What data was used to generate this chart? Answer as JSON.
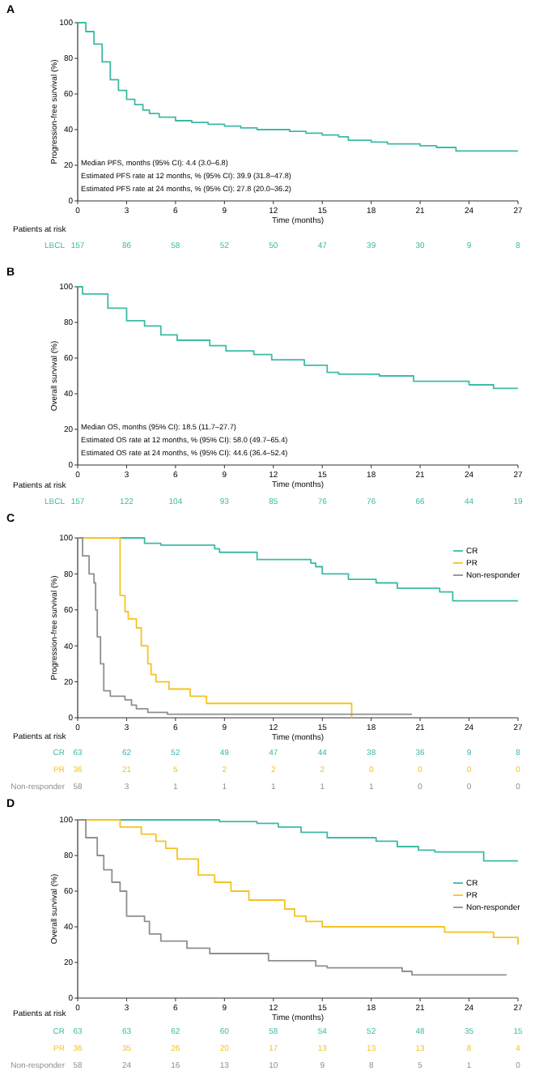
{
  "chart_data": [
    {
      "type": "step",
      "title": "A",
      "xlabel": "Time (months)",
      "ylabel": "Progression-free survival (%)",
      "xlim": [
        0,
        27
      ],
      "ylim": [
        0,
        100
      ],
      "xticks": [
        0,
        3,
        6,
        9,
        12,
        15,
        18,
        21,
        24,
        27
      ],
      "yticks": [
        0,
        20,
        40,
        60,
        80,
        100
      ],
      "annotations": [
        "Median PFS, months (95% CI):  4.4 (3.0–6.8)",
        "Estimated PFS rate at 12 months, % (95% CI):  39.9 (31.8–47.8)",
        "Estimated PFS rate at 24 months, % (95% CI):  27.8 (20.0–36.2)"
      ],
      "series": [
        {
          "color": "#3dbaa5",
          "x": [
            0,
            0.5,
            1,
            1.5,
            2,
            2.5,
            3,
            3.5,
            4,
            4.4,
            5,
            6,
            7,
            8,
            9,
            10,
            11,
            12,
            13,
            14,
            15,
            16,
            16.6,
            18,
            19,
            21,
            22,
            23.2,
            24,
            27
          ],
          "values": [
            100,
            95,
            88,
            78,
            68,
            62,
            57,
            54,
            51,
            49,
            47,
            45,
            44,
            43,
            42,
            41,
            40,
            40,
            39,
            38,
            37,
            36,
            34,
            33,
            32,
            31,
            30,
            28,
            28,
            28
          ]
        }
      ]
    },
    {
      "type": "heatmap",
      "title": "Patients at risk",
      "data_labels": true,
      "categories": [
        null,
        null,
        null,
        null,
        null,
        null,
        null,
        null,
        null,
        null
      ],
      "y_categories": [
        "LBCL"
      ],
      "cells": [
        [
          157,
          86,
          58,
          52,
          50,
          47,
          39,
          30,
          9,
          8
        ]
      ]
    },
    {
      "type": "step",
      "title": "B",
      "xlabel": "Time (months)",
      "ylabel": "Overall survival (%)",
      "xlim": [
        0,
        27
      ],
      "ylim": [
        0,
        100
      ],
      "xticks": [
        0,
        3,
        6,
        9,
        12,
        15,
        18,
        21,
        24,
        27
      ],
      "yticks": [
        0,
        20,
        40,
        60,
        80,
        100
      ],
      "annotations": [
        "Median OS, months (95% CI):  18.5 (11.7–27.7)",
        "Estimated OS rate at 12 months, % (95% CI):  58.0 (49.7–65.4)",
        "Estimated OS rate at 24 months, % (95% CI):  44.6 (36.4–52.4)"
      ],
      "series": [
        {
          "color": "#3dbaa5",
          "x": [
            0,
            0.3,
            1.85,
            3,
            4.1,
            5.1,
            6.1,
            8.1,
            9.1,
            10.8,
            11.9,
            13.9,
            15.3,
            16,
            18.5,
            20.6,
            24,
            25.5,
            27
          ],
          "values": [
            100,
            96,
            88,
            81,
            78,
            73,
            70,
            67,
            64,
            62,
            59,
            56,
            52,
            51,
            50,
            47,
            45,
            43,
            43
          ]
        }
      ]
    },
    {
      "type": "heatmap",
      "title": "Patients at risk",
      "data_labels": true,
      "categories": [
        null,
        null,
        null,
        null,
        null,
        null,
        null,
        null,
        null,
        null
      ],
      "y_categories": [
        "LBCL"
      ],
      "cells": [
        [
          157,
          122,
          104,
          93,
          85,
          76,
          76,
          66,
          44,
          19
        ]
      ]
    },
    {
      "type": "step",
      "title": "C",
      "xlabel": "Time (months)",
      "ylabel": "Progression-free survival (%)",
      "xlim": [
        0,
        27
      ],
      "ylim": [
        0,
        100
      ],
      "xticks": [
        0,
        3,
        6,
        9,
        12,
        15,
        18,
        21,
        24,
        27
      ],
      "yticks": [
        0,
        20,
        40,
        60,
        80,
        100
      ],
      "legend": "top right",
      "series": [
        {
          "name": "CR",
          "color": "#3dbaa5",
          "x": [
            0,
            4.1,
            5.1,
            8.4,
            8.7,
            11,
            14.3,
            14.6,
            15,
            16.6,
            18.3,
            19.6,
            22.2,
            23,
            27
          ],
          "values": [
            100,
            97,
            96,
            94,
            92,
            88,
            86,
            84,
            80,
            77,
            75,
            72,
            70,
            65,
            65
          ]
        },
        {
          "name": "PR",
          "color": "#f5c320",
          "x": [
            0,
            2.6,
            2.9,
            3.1,
            3.6,
            3.9,
            4.3,
            4.5,
            4.8,
            5.6,
            6.9,
            7.9,
            8.4,
            16.8
          ],
          "values": [
            100,
            68,
            59,
            55,
            50,
            40,
            30,
            24,
            20,
            16,
            12,
            8,
            8,
            0
          ]
        },
        {
          "name": "Non-responder",
          "color": "#8f8f8f",
          "x": [
            0,
            0.3,
            0.7,
            1,
            1.1,
            1.2,
            1.4,
            1.6,
            2,
            2.9,
            3.3,
            3.6,
            4.3,
            5.5,
            20.5
          ],
          "values": [
            100,
            90,
            80,
            75,
            60,
            45,
            30,
            15,
            12,
            10,
            7,
            5,
            3,
            2,
            2
          ]
        }
      ]
    },
    {
      "type": "heatmap",
      "title": "Patients at risk",
      "data_labels": true,
      "categories": [
        null,
        null,
        null,
        null,
        null,
        null,
        null,
        null,
        null,
        null
      ],
      "y_categories": [
        "CR",
        "PR",
        "Non-responder"
      ],
      "cells": [
        [
          63,
          62,
          52,
          49,
          47,
          44,
          38,
          36,
          9,
          8
        ],
        [
          36,
          21,
          5,
          2,
          2,
          2,
          0,
          0,
          0,
          0
        ],
        [
          58,
          3,
          1,
          1,
          1,
          1,
          1,
          0,
          0,
          0
        ]
      ]
    },
    {
      "type": "step",
      "title": "D",
      "xlabel": "Time (months)",
      "ylabel": "Overall survival (%)",
      "xlim": [
        0,
        27
      ],
      "ylim": [
        0,
        100
      ],
      "xticks": [
        0,
        3,
        6,
        9,
        12,
        15,
        18,
        21,
        24,
        27
      ],
      "yticks": [
        0,
        20,
        40,
        60,
        80,
        100
      ],
      "legend": "right",
      "series": [
        {
          "name": "CR",
          "color": "#3dbaa5",
          "x": [
            0,
            8.7,
            11,
            12.3,
            13.7,
            15.3,
            18.3,
            19.6,
            20.9,
            21.9,
            24.9,
            27
          ],
          "values": [
            100,
            99,
            98,
            96,
            93,
            90,
            88,
            85,
            83,
            82,
            77,
            77
          ]
        },
        {
          "name": "PR",
          "color": "#f5c320",
          "x": [
            0,
            2.6,
            3.9,
            4.8,
            5.4,
            6.1,
            7.4,
            8.4,
            9.4,
            10.5,
            12.7,
            13.3,
            14,
            15,
            22.5,
            25.5,
            27
          ],
          "values": [
            100,
            96,
            92,
            88,
            84,
            78,
            69,
            65,
            60,
            55,
            50,
            46,
            43,
            40,
            37,
            34,
            30
          ]
        },
        {
          "name": "Non-responder",
          "color": "#8f8f8f",
          "x": [
            0,
            0.5,
            1.2,
            1.6,
            2.1,
            2.6,
            3,
            4.1,
            4.4,
            5.1,
            6.7,
            8.1,
            11.7,
            14.6,
            15.3,
            19.9,
            20.5,
            26.3
          ],
          "values": [
            100,
            90,
            80,
            72,
            65,
            60,
            46,
            43,
            36,
            32,
            28,
            25,
            21,
            18,
            17,
            15,
            13,
            13
          ]
        }
      ]
    },
    {
      "type": "heatmap",
      "title": "Patients at risk",
      "data_labels": true,
      "categories": [
        null,
        null,
        null,
        null,
        null,
        null,
        null,
        null,
        null,
        null
      ],
      "y_categories": [
        "CR",
        "PR",
        "Non-responder"
      ],
      "cells": [
        [
          63,
          63,
          62,
          60,
          58,
          54,
          52,
          48,
          35,
          15
        ],
        [
          36,
          35,
          26,
          20,
          17,
          13,
          13,
          13,
          8,
          4
        ],
        [
          58,
          24,
          16,
          13,
          10,
          9,
          8,
          5,
          1,
          0
        ]
      ]
    }
  ]
}
